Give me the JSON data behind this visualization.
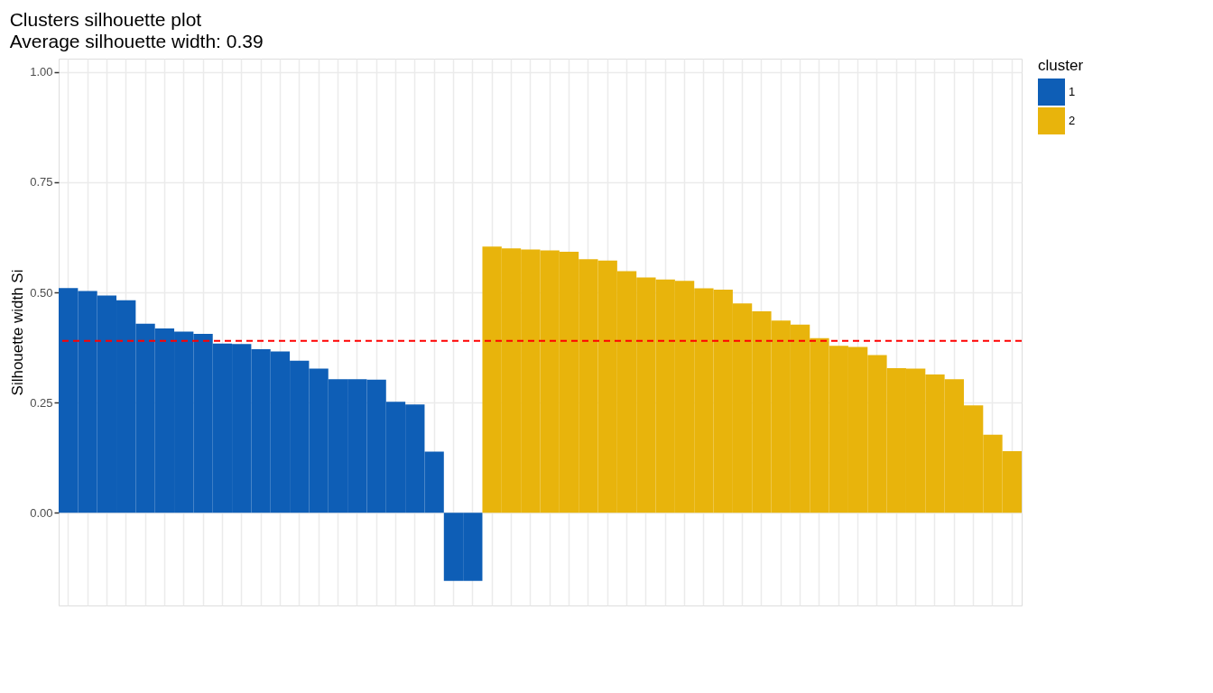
{
  "chart_data": {
    "type": "bar",
    "title": "Clusters silhouette plot",
    "subtitle": " Average silhouette width: 0.39",
    "ylabel": "Silhouette width Si",
    "legend_title": "cluster",
    "categories": [
      null,
      null,
      null,
      null,
      null,
      null,
      null,
      null,
      null,
      null,
      null,
      null,
      null,
      null,
      null,
      null,
      null,
      null,
      null,
      null,
      null,
      null,
      null,
      null,
      null,
      null,
      null,
      null,
      null,
      null,
      null,
      null,
      null,
      null,
      null,
      null,
      null,
      null,
      null,
      null,
      null,
      null,
      null,
      null,
      null,
      null,
      null,
      null,
      null,
      null
    ],
    "series": [
      {
        "name": "1",
        "color": "#0e5eb6",
        "values": [
          0.51,
          0.503,
          0.493,
          0.482,
          0.429,
          0.418,
          0.411,
          0.406,
          0.384,
          0.383,
          0.371,
          0.366,
          0.345,
          0.327,
          0.303,
          0.303,
          0.302,
          0.252,
          0.246,
          0.139,
          -0.154,
          -0.154,
          null,
          null,
          null,
          null,
          null,
          null,
          null,
          null,
          null,
          null,
          null,
          null,
          null,
          null,
          null,
          null,
          null,
          null,
          null,
          null,
          null,
          null,
          null,
          null,
          null,
          null,
          null,
          null
        ]
      },
      {
        "name": "2",
        "color": "#e8b40c",
        "values": [
          null,
          null,
          null,
          null,
          null,
          null,
          null,
          null,
          null,
          null,
          null,
          null,
          null,
          null,
          null,
          null,
          null,
          null,
          null,
          null,
          null,
          null,
          0.604,
          0.6,
          0.597,
          0.595,
          0.592,
          0.575,
          0.572,
          0.548,
          0.534,
          0.529,
          0.526,
          0.509,
          0.506,
          0.475,
          0.457,
          0.436,
          0.427,
          0.396,
          0.379,
          0.376,
          0.358,
          0.328,
          0.327,
          0.314,
          0.303,
          0.244,
          0.177,
          0.14
        ]
      }
    ],
    "ylim": [
      -0.21,
      1.03
    ],
    "yticks": [
      {
        "value": 0,
        "label": "0.00"
      },
      {
        "value": 0.25,
        "label": "0.25"
      },
      {
        "value": 0.5,
        "label": "0.50"
      },
      {
        "value": 0.75,
        "label": "0.75"
      },
      {
        "value": 1,
        "label": "1.00"
      }
    ],
    "ref_lines": [
      {
        "axis": "y",
        "value": 0.39,
        "label": null,
        "color": "#ff0000",
        "line_style": "dashed"
      }
    ],
    "grid": true,
    "legend": "right",
    "tick_labels": "y"
  }
}
